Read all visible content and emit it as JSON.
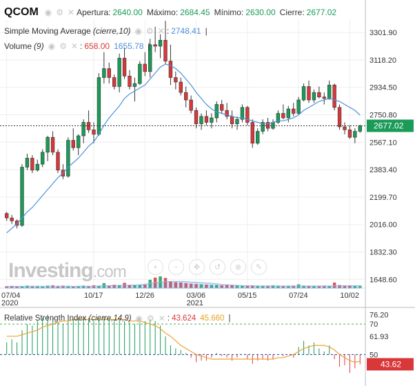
{
  "header": {
    "symbol": "QCOM",
    "open_label": "Apertura:",
    "open": "2640.00",
    "high_label": "Máximo:",
    "high": "2684.45",
    "low_label": "Mínimo:",
    "low": "2630.00",
    "close_label": "Cierre:",
    "close": "2677.02"
  },
  "sma_legend": {
    "name": "Simple Moving Average",
    "params": "(cierre,10)",
    "value": "2748.41"
  },
  "volume_legend": {
    "name": "Volume",
    "params": "(9)",
    "value_red": "658.00",
    "value_blue": "1655.78"
  },
  "rsi_legend": {
    "name": "Relative Strength Index",
    "params": "(cierre,14,9)",
    "value1": "43.624",
    "value2": "45.660"
  },
  "current_price_label": "2677.02",
  "rsi_current_label": "43.62",
  "brand": {
    "name": "Investing",
    "suffix": ".com"
  },
  "colors": {
    "up": "#1a9b58",
    "down": "#d9383a",
    "sma": "#4a90d9",
    "rsi": "#f0a030",
    "grid": "#eeeeee"
  },
  "icons": [
    "eye-icon",
    "settings-icon",
    "close-icon"
  ],
  "toolbar_icons": [
    "zoom-in-icon",
    "zoom-out-icon",
    "pan-icon",
    "reset-icon",
    "crosshair-icon",
    "draw-icon"
  ],
  "chart_data": [
    {
      "type": "candlestick",
      "y_ticks": [
        1648.6,
        1832.3,
        2016.0,
        2199.7,
        2383.4,
        2567.1,
        2750.8,
        2934.5,
        3118.2,
        3301.9
      ],
      "ylim": [
        1590,
        3390
      ],
      "x_ticks": [
        {
          "label": "07/04",
          "sub": "2020",
          "index": 0
        },
        {
          "label": "10/17",
          "sub": "",
          "index": 17
        },
        {
          "label": "12/26",
          "sub": "",
          "index": 27
        },
        {
          "label": "03/06",
          "sub": "2021",
          "index": 37
        },
        {
          "label": "05/15",
          "sub": "",
          "index": 47
        },
        {
          "label": "07/24",
          "sub": "",
          "index": 57
        },
        {
          "label": "10/02",
          "sub": "",
          "index": 67
        }
      ],
      "current_price": 2677.02,
      "series": [
        {
          "name": "QCOM",
          "ohlc": [
            [
              2090,
              2100,
              2040,
              2060
            ],
            [
              2060,
              2080,
              2020,
              2040
            ],
            [
              2040,
              2050,
              1990,
              2010
            ],
            [
              2010,
              2420,
              2000,
              2400
            ],
            [
              2400,
              2490,
              2380,
              2460
            ],
            [
              2460,
              2480,
              2360,
              2380
            ],
            [
              2380,
              2450,
              2370,
              2420
            ],
            [
              2420,
              2520,
              2400,
              2500
            ],
            [
              2500,
              2610,
              2440,
              2600
            ],
            [
              2600,
              2640,
              2480,
              2500
            ],
            [
              2500,
              2520,
              2360,
              2380
            ],
            [
              2380,
              2420,
              2320,
              2340
            ],
            [
              2340,
              2600,
              2330,
              2580
            ],
            [
              2580,
              2660,
              2510,
              2530
            ],
            [
              2530,
              2620,
              2480,
              2610
            ],
            [
              2610,
              2720,
              2560,
              2700
            ],
            [
              2700,
              2780,
              2630,
              2650
            ],
            [
              2650,
              2700,
              2560,
              2620
            ],
            [
              2620,
              3030,
              2610,
              3000
            ],
            [
              3000,
              3170,
              2960,
              3060
            ],
            [
              3060,
              3100,
              2960,
              3000
            ],
            [
              3000,
              3020,
              2920,
              2940
            ],
            [
              2940,
              3160,
              2900,
              3130
            ],
            [
              3130,
              3200,
              2990,
              3010
            ],
            [
              3010,
              3050,
              2920,
              2940
            ],
            [
              2940,
              3000,
              2840,
              2960
            ],
            [
              2960,
              3110,
              2950,
              3090
            ],
            [
              3090,
              3170,
              3010,
              3040
            ],
            [
              3040,
              3260,
              3000,
              3220
            ],
            [
              3220,
              3340,
              3170,
              3210
            ],
            [
              3210,
              3290,
              3130,
              3250
            ],
            [
              3250,
              3380,
              3090,
              3110
            ],
            [
              3110,
              3220,
              2950,
              3000
            ],
            [
              3000,
              3040,
              2920,
              2970
            ],
            [
              2970,
              3000,
              2880,
              2900
            ],
            [
              2900,
              2940,
              2800,
              2850
            ],
            [
              2850,
              2880,
              2760,
              2780
            ],
            [
              2780,
              2800,
              2660,
              2690
            ],
            [
              2690,
              2760,
              2650,
              2740
            ],
            [
              2740,
              2780,
              2680,
              2700
            ],
            [
              2700,
              2760,
              2660,
              2730
            ],
            [
              2730,
              2840,
              2700,
              2820
            ],
            [
              2820,
              2850,
              2760,
              2780
            ],
            [
              2780,
              2830,
              2720,
              2740
            ],
            [
              2740,
              2780,
              2660,
              2690
            ],
            [
              2690,
              2740,
              2650,
              2720
            ],
            [
              2720,
              2820,
              2700,
              2800
            ],
            [
              2800,
              2810,
              2680,
              2700
            ],
            [
              2700,
              2720,
              2530,
              2560
            ],
            [
              2560,
              2660,
              2550,
              2640
            ],
            [
              2640,
              2720,
              2620,
              2700
            ],
            [
              2700,
              2730,
              2640,
              2660
            ],
            [
              2660,
              2720,
              2650,
              2700
            ],
            [
              2700,
              2780,
              2690,
              2760
            ],
            [
              2760,
              2820,
              2720,
              2730
            ],
            [
              2730,
              2810,
              2700,
              2790
            ],
            [
              2790,
              2830,
              2740,
              2760
            ],
            [
              2760,
              2870,
              2750,
              2850
            ],
            [
              2850,
              2960,
              2840,
              2940
            ],
            [
              2940,
              2980,
              2830,
              2850
            ],
            [
              2850,
              2920,
              2830,
              2900
            ],
            [
              2900,
              2940,
              2860,
              2870
            ],
            [
              2870,
              2900,
              2820,
              2860
            ],
            [
              2860,
              2980,
              2850,
              2950
            ],
            [
              2950,
              2960,
              2780,
              2800
            ],
            [
              2800,
              2820,
              2650,
              2670
            ],
            [
              2670,
              2700,
              2620,
              2650
            ],
            [
              2650,
              2680,
              2590,
              2600
            ],
            [
              2600,
              2660,
              2560,
              2640
            ],
            [
              2640,
              2684.45,
              2630,
              2677.02
            ]
          ]
        },
        {
          "name": "Simple Moving Average",
          "values": [
            1960,
            1990,
            2020,
            2060,
            2100,
            2130,
            2170,
            2210,
            2250,
            2290,
            2330,
            2360,
            2400,
            2430,
            2460,
            2500,
            2540,
            2570,
            2620,
            2680,
            2730,
            2770,
            2810,
            2860,
            2890,
            2910,
            2930,
            2950,
            2990,
            3030,
            3070,
            3090,
            3080,
            3060,
            3030,
            2990,
            2950,
            2900,
            2860,
            2820,
            2790,
            2770,
            2760,
            2750,
            2740,
            2730,
            2730,
            2720,
            2710,
            2700,
            2690,
            2690,
            2700,
            2710,
            2710,
            2720,
            2730,
            2750,
            2780,
            2800,
            2820,
            2840,
            2850,
            2860,
            2850,
            2840,
            2820,
            2800,
            2780,
            2748.41
          ]
        },
        {
          "name": "Volume",
          "values": [
            4,
            5,
            3,
            4,
            6,
            5,
            5,
            4,
            6,
            7,
            5,
            6,
            5,
            4,
            5,
            6,
            5,
            7,
            6,
            14,
            7,
            9,
            8,
            15,
            8,
            7,
            8,
            9,
            25,
            32,
            36,
            31,
            20,
            17,
            16,
            14,
            12,
            11,
            10,
            9,
            8,
            8,
            7,
            8,
            7,
            8,
            7,
            6,
            7,
            6,
            6,
            6,
            7,
            6,
            5,
            5,
            6,
            10,
            6,
            5,
            5,
            5,
            6,
            5,
            16,
            8,
            6,
            7,
            5,
            6
          ],
          "avg": [
            6,
            6,
            6,
            6,
            6,
            6,
            6,
            6,
            6,
            6,
            6,
            6,
            6,
            6,
            6,
            6,
            6,
            6,
            7,
            8,
            8,
            9,
            9,
            9,
            10,
            10,
            11,
            13,
            16,
            18,
            20,
            21,
            22,
            22,
            22,
            21,
            20,
            19,
            18,
            17,
            16,
            14,
            12,
            11,
            10,
            9,
            8,
            8,
            8,
            7,
            7,
            7,
            7,
            7,
            7,
            7,
            7,
            7,
            7,
            7,
            7,
            7,
            7,
            7,
            8,
            8,
            8,
            8,
            8,
            8
          ]
        }
      ]
    },
    {
      "type": "line",
      "name": "Relative Strength Index",
      "y_ticks": [
        50,
        61.93,
        70,
        76.2
      ],
      "ylim": [
        33,
        80
      ],
      "levels": [
        70,
        50
      ],
      "current_value": 43.62,
      "series": [
        {
          "name": "RSI",
          "values": [
            58,
            60,
            58,
            66,
            70,
            69,
            72,
            74,
            76.2,
            74,
            71,
            70,
            72,
            73,
            74,
            75,
            74,
            72,
            74,
            75,
            74,
            72,
            73,
            72,
            71,
            70,
            71,
            72,
            73,
            72,
            69,
            62,
            56,
            54,
            53,
            51,
            48,
            45,
            46,
            46,
            48,
            51,
            49,
            48,
            46,
            48,
            50,
            47,
            44,
            46,
            47,
            46,
            47,
            50,
            49,
            50,
            48,
            55,
            59,
            56,
            58,
            54,
            52,
            56,
            47,
            42,
            43,
            38,
            41,
            43.624
          ]
        },
        {
          "name": "Signal",
          "values": [
            62,
            62,
            62,
            63,
            64,
            65,
            66,
            68,
            69,
            70,
            71,
            72,
            72,
            73,
            73,
            73,
            73,
            73,
            73,
            73,
            73,
            73,
            73,
            73,
            72,
            72,
            72,
            71,
            70,
            69,
            67,
            64,
            62,
            59,
            56,
            54,
            52,
            50,
            49,
            48,
            47,
            47,
            47,
            47,
            47,
            47,
            47,
            47,
            47,
            47,
            47,
            47,
            47,
            48,
            48,
            49,
            50,
            52,
            54,
            55,
            56,
            56,
            56,
            55,
            53,
            50,
            48,
            46,
            45,
            45.66
          ]
        }
      ]
    }
  ]
}
